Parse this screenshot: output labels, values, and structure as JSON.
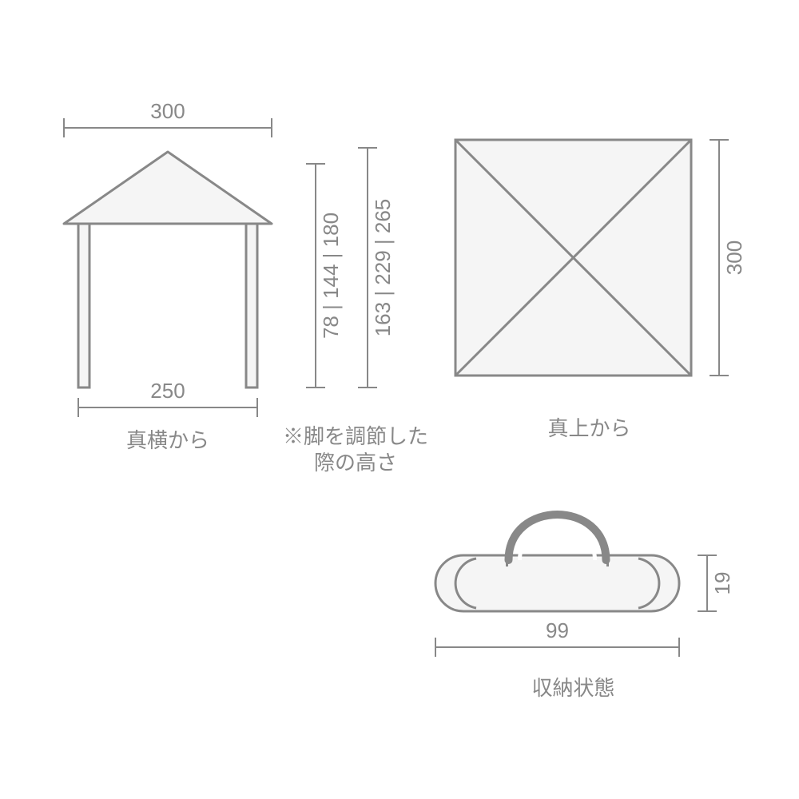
{
  "colors": {
    "stroke": "#888888",
    "fill": "#f5f5f5",
    "bg": "#ffffff",
    "text": "#888888"
  },
  "line_width": {
    "shape": 3,
    "dim": 2,
    "dim_tick": 2
  },
  "font_size": 26,
  "side_view": {
    "roof_width": "300",
    "leg_span": "250",
    "label": "真横から",
    "heights_inner": [
      "78",
      "144",
      "180"
    ],
    "heights_outer": [
      "163",
      "229",
      "265"
    ],
    "note_line1": "※脚を調節した",
    "note_line2": "際の高さ"
  },
  "top_view": {
    "side": "300",
    "label": "真上から"
  },
  "bag": {
    "width": "99",
    "height": "19",
    "label": "収納状態"
  }
}
